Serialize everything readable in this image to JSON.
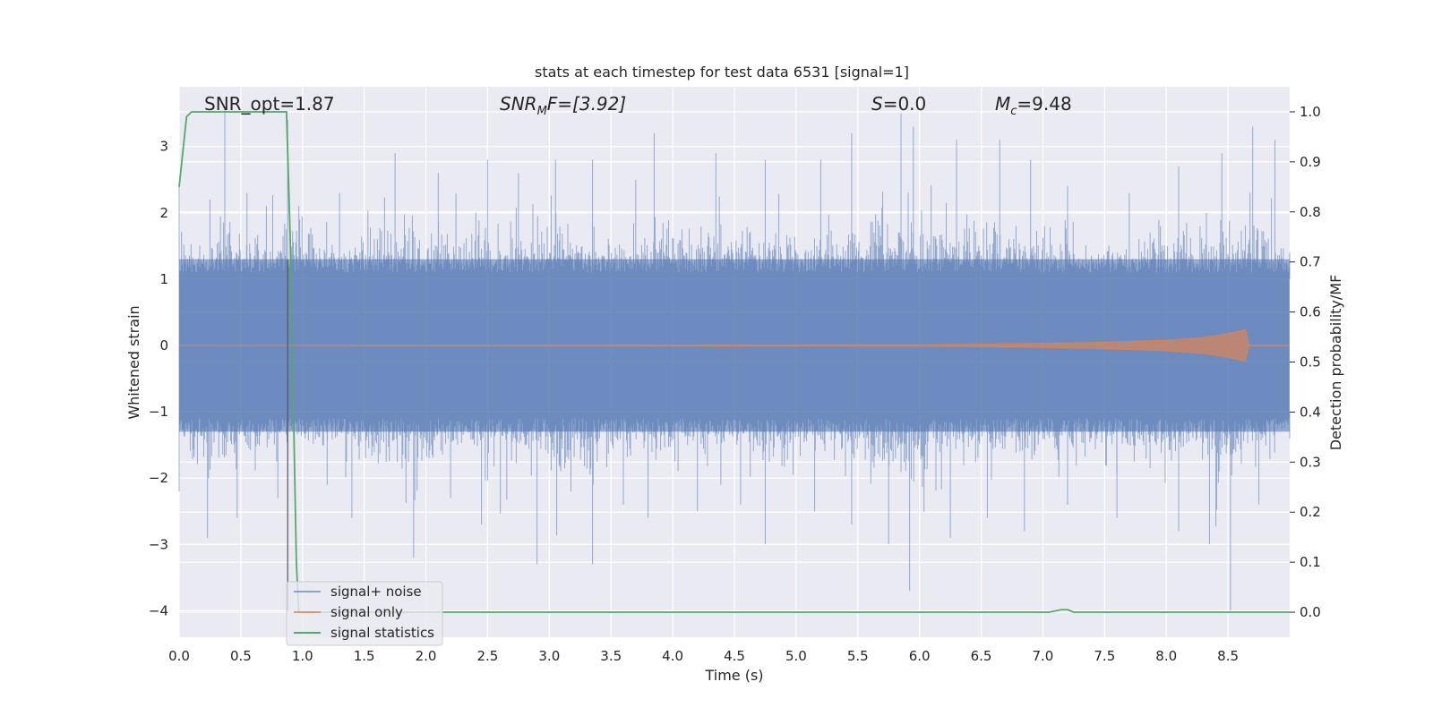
{
  "chart_data": {
    "type": "line",
    "title": "stats at each timestep for test data 6531 [signal=1]",
    "xlabel": "Time (s)",
    "ylabel": "Whitened strain",
    "y2label": "Detection probability/MF",
    "xlim": [
      0.0,
      9.0
    ],
    "ylim": [
      -4.4,
      3.9
    ],
    "y2lim": [
      -0.05,
      1.05
    ],
    "grid": true,
    "legend_position": "lower-left",
    "x_ticks": [
      0.0,
      0.5,
      1.0,
      1.5,
      2.0,
      2.5,
      3.0,
      3.5,
      4.0,
      4.5,
      5.0,
      5.5,
      6.0,
      6.5,
      7.0,
      7.5,
      8.0,
      8.5
    ],
    "x_tick_labels": [
      "0.0",
      "0.5",
      "1.0",
      "1.5",
      "2.0",
      "2.5",
      "3.0",
      "3.5",
      "4.0",
      "4.5",
      "5.0",
      "5.5",
      "6.0",
      "6.5",
      "7.0",
      "7.5",
      "8.0",
      "8.5"
    ],
    "y_ticks": [
      -4,
      -3,
      -2,
      -1,
      0,
      1,
      2,
      3
    ],
    "y_tick_labels": [
      "−4",
      "−3",
      "−2",
      "−1",
      "0",
      "1",
      "2",
      "3"
    ],
    "y2_ticks": [
      0.0,
      0.1,
      0.2,
      0.3,
      0.4,
      0.5,
      0.6,
      0.7,
      0.8,
      0.9,
      1.0
    ],
    "y2_tick_labels": [
      "0.0",
      "0.1",
      "0.2",
      "0.3",
      "0.4",
      "0.5",
      "0.6",
      "0.7",
      "0.8",
      "0.9",
      "1.0"
    ],
    "annotations": {
      "snr_opt": "SNR_opt=1.87",
      "snr_mf_base": "SNR",
      "snr_mf_sub": "M",
      "snr_mf_rest": "F=[3.92]",
      "s_base": "S",
      "s_rest": "=0.0",
      "mc_base": "M",
      "mc_sub": "c",
      "mc_rest": "=9.48"
    },
    "colors": {
      "background": "#eaeaf2",
      "grid": "#ffffff",
      "noise": "#4c72b0",
      "signal": "#dd8452",
      "statistics": "#55a868",
      "marker_line": "#555555"
    },
    "series": [
      {
        "name": "signal+ noise",
        "axis": "left",
        "description_values": "dense noise trace, typical band about ±1.3, extremes listed below",
        "envelope_upper": [
          [
            0.0,
            2.4
          ],
          [
            0.25,
            2.2
          ],
          [
            0.37,
            3.6
          ],
          [
            0.55,
            2.3
          ],
          [
            0.88,
            3.4
          ],
          [
            1.3,
            2.3
          ],
          [
            1.75,
            2.9
          ],
          [
            2.1,
            2.6
          ],
          [
            2.5,
            2.8
          ],
          [
            2.75,
            2.6
          ],
          [
            3.05,
            2.8
          ],
          [
            3.35,
            2.8
          ],
          [
            3.7,
            2.5
          ],
          [
            3.85,
            3.2
          ],
          [
            4.35,
            2.9
          ],
          [
            4.75,
            2.8
          ],
          [
            5.2,
            2.8
          ],
          [
            5.45,
            3.2
          ],
          [
            5.85,
            3.5
          ],
          [
            5.95,
            3.3
          ],
          [
            6.3,
            3.1
          ],
          [
            6.65,
            3.1
          ],
          [
            6.9,
            2.8
          ],
          [
            7.2,
            2.4
          ],
          [
            7.7,
            2.3
          ],
          [
            8.1,
            2.7
          ],
          [
            8.45,
            2.9
          ],
          [
            8.7,
            3.3
          ],
          [
            8.88,
            3.1
          ],
          [
            9.0,
            1.4
          ]
        ],
        "envelope_lower": [
          [
            0.0,
            -2.2
          ],
          [
            0.23,
            -2.9
          ],
          [
            0.47,
            -2.6
          ],
          [
            0.8,
            -2.3
          ],
          [
            1.2,
            -2.1
          ],
          [
            1.4,
            -2.6
          ],
          [
            1.9,
            -3.2
          ],
          [
            2.2,
            -2.3
          ],
          [
            2.45,
            -2.7
          ],
          [
            2.9,
            -3.3
          ],
          [
            3.35,
            -3.3
          ],
          [
            3.6,
            -2.4
          ],
          [
            3.8,
            -2.6
          ],
          [
            4.2,
            -2.5
          ],
          [
            4.55,
            -2.4
          ],
          [
            4.75,
            -3.0
          ],
          [
            5.15,
            -2.5
          ],
          [
            5.45,
            -2.7
          ],
          [
            5.75,
            -3.0
          ],
          [
            5.92,
            -3.7
          ],
          [
            6.25,
            -2.9
          ],
          [
            6.55,
            -2.6
          ],
          [
            6.85,
            -2.8
          ],
          [
            7.2,
            -2.4
          ],
          [
            7.6,
            -2.6
          ],
          [
            8.1,
            -2.8
          ],
          [
            8.35,
            -3.0
          ],
          [
            8.52,
            -4.0
          ],
          [
            8.75,
            -2.4
          ],
          [
            9.0,
            -1.4
          ]
        ]
      },
      {
        "name": "signal only",
        "axis": "left",
        "envelope": [
          [
            0.0,
            0.0
          ],
          [
            6.0,
            0.01
          ],
          [
            7.0,
            0.03
          ],
          [
            7.5,
            0.05
          ],
          [
            8.0,
            0.08
          ],
          [
            8.3,
            0.12
          ],
          [
            8.5,
            0.18
          ],
          [
            8.6,
            0.22
          ],
          [
            8.66,
            0.25
          ],
          [
            8.67,
            0.0
          ],
          [
            9.0,
            0.0
          ]
        ]
      },
      {
        "name": "signal statistics",
        "axis": "right",
        "x": [
          0.0,
          0.06,
          0.1,
          0.2,
          0.4,
          0.6,
          0.7,
          0.8,
          0.87,
          0.9,
          0.95,
          0.97,
          1.0,
          1.5,
          2.0,
          3.0,
          4.0,
          5.0,
          6.0,
          7.0,
          7.05,
          7.15,
          7.2,
          7.25,
          7.3,
          8.0,
          9.0
        ],
        "values": [
          0.85,
          0.99,
          1.0,
          1.0,
          1.0,
          1.0,
          1.0,
          1.0,
          1.0,
          0.75,
          0.1,
          0.0,
          0.0,
          0.0,
          0.0,
          0.0,
          0.0,
          0.0,
          0.0,
          0.0,
          0.0,
          0.005,
          0.005,
          0.0,
          0.0,
          0.0,
          0.0
        ]
      }
    ],
    "marker_line_x": 0.88
  }
}
